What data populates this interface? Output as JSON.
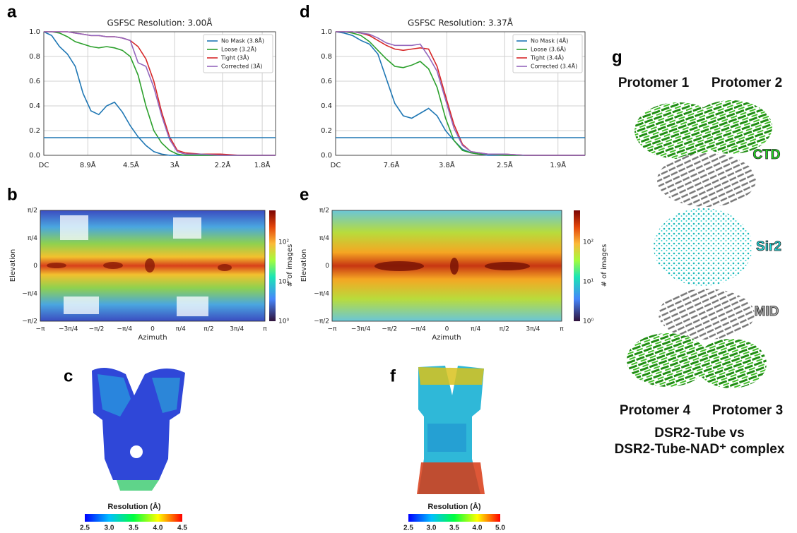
{
  "panel_labels": [
    "a",
    "b",
    "c",
    "d",
    "e",
    "f",
    "g"
  ],
  "chart_data": [
    {
      "type": "line",
      "title": "GSFSC Resolution: 3.00Å",
      "x": [
        0,
        0.02,
        0.04,
        0.06,
        0.08,
        0.1,
        0.12,
        0.14,
        0.16,
        0.18,
        0.2,
        0.22,
        0.24,
        0.26,
        0.28,
        0.3,
        0.32,
        0.34,
        0.36,
        0.4,
        0.45,
        0.5,
        0.55,
        0.59
      ],
      "series": [
        {
          "name": "No Mask (3.8Å)",
          "color": "#1f77b4",
          "values": [
            1,
            0.97,
            0.88,
            0.82,
            0.72,
            0.5,
            0.36,
            0.33,
            0.4,
            0.43,
            0.35,
            0.24,
            0.15,
            0.08,
            0.03,
            0.01,
            0,
            0,
            0,
            0,
            0,
            0,
            0,
            0
          ]
        },
        {
          "name": "Loose (3.2Å)",
          "color": "#2ca02c",
          "values": [
            1,
            1,
            0.99,
            0.96,
            0.92,
            0.9,
            0.88,
            0.87,
            0.88,
            0.87,
            0.85,
            0.8,
            0.65,
            0.4,
            0.2,
            0.1,
            0.04,
            0.01,
            0,
            0,
            0,
            0,
            0,
            0
          ]
        },
        {
          "name": "Tight (3Å)",
          "color": "#d62728",
          "values": [
            1,
            1,
            1,
            1,
            0.99,
            0.98,
            0.97,
            0.97,
            0.96,
            0.96,
            0.95,
            0.93,
            0.88,
            0.78,
            0.6,
            0.35,
            0.15,
            0.04,
            0.02,
            0.01,
            0.01,
            0,
            0,
            0
          ]
        },
        {
          "name": "Corrected (3Å)",
          "color": "#9467bd",
          "values": [
            1,
            1,
            1,
            1,
            0.99,
            0.98,
            0.97,
            0.97,
            0.96,
            0.96,
            0.95,
            0.93,
            0.75,
            0.72,
            0.55,
            0.32,
            0.13,
            0.03,
            0.01,
            0.01,
            0,
            0,
            0,
            0
          ]
        }
      ],
      "threshold": 0.143,
      "xlim": [
        0,
        0.59
      ],
      "ylim": [
        0,
        1
      ],
      "xticks": [
        {
          "value": 0,
          "label": "DC"
        },
        {
          "value": 0.112,
          "label": "8.9Å"
        },
        {
          "value": 0.222,
          "label": "4.5Å"
        },
        {
          "value": 0.333,
          "label": "3Å"
        },
        {
          "value": 0.455,
          "label": "2.2Å"
        },
        {
          "value": 0.556,
          "label": "1.8Å"
        }
      ],
      "yticks": [
        {
          "value": 0,
          "label": "0.0"
        },
        0.2,
        0.4,
        0.6,
        0.8,
        {
          "value": 1,
          "label": "1.0"
        }
      ],
      "grid": true,
      "legend": "upper right"
    },
    {
      "type": "line",
      "title": "GSFSC Resolution: 3.37Å",
      "x": [
        0,
        0.02,
        0.04,
        0.06,
        0.08,
        0.1,
        0.12,
        0.14,
        0.16,
        0.18,
        0.2,
        0.22,
        0.24,
        0.26,
        0.28,
        0.3,
        0.32,
        0.34,
        0.36,
        0.4,
        0.45,
        0.5,
        0.55,
        0.59
      ],
      "series": [
        {
          "name": "No Mask (4Å)",
          "color": "#1f77b4",
          "values": [
            1,
            0.99,
            0.97,
            0.93,
            0.9,
            0.82,
            0.62,
            0.42,
            0.32,
            0.3,
            0.34,
            0.38,
            0.32,
            0.2,
            0.12,
            0.05,
            0.02,
            0.01,
            0,
            0,
            0,
            0,
            0,
            0
          ]
        },
        {
          "name": "Loose (3.6Å)",
          "color": "#2ca02c",
          "values": [
            1,
            1,
            0.99,
            0.97,
            0.92,
            0.85,
            0.78,
            0.72,
            0.71,
            0.73,
            0.76,
            0.7,
            0.55,
            0.3,
            0.12,
            0.04,
            0.02,
            0.01,
            0.01,
            0,
            0,
            0,
            0,
            0
          ]
        },
        {
          "name": "Tight (3.4Å)",
          "color": "#d62728",
          "values": [
            1,
            1,
            1,
            0.99,
            0.97,
            0.93,
            0.89,
            0.86,
            0.85,
            0.86,
            0.87,
            0.86,
            0.72,
            0.48,
            0.25,
            0.09,
            0.03,
            0.02,
            0.01,
            0.01,
            0,
            0,
            0,
            0
          ]
        },
        {
          "name": "Corrected (3.4Å)",
          "color": "#9467bd",
          "values": [
            1,
            1,
            1,
            0.99,
            0.98,
            0.95,
            0.91,
            0.89,
            0.89,
            0.89,
            0.9,
            0.8,
            0.68,
            0.45,
            0.22,
            0.08,
            0.03,
            0.02,
            0.01,
            0.01,
            0,
            0,
            0,
            0
          ]
        }
      ],
      "threshold": 0.143,
      "xlim": [
        0,
        0.59
      ],
      "ylim": [
        0,
        1
      ],
      "xticks": [
        {
          "value": 0,
          "label": "DC"
        },
        {
          "value": 0.132,
          "label": "7.6Å"
        },
        {
          "value": 0.263,
          "label": "3.8Å"
        },
        {
          "value": 0.4,
          "label": "2.5Å"
        },
        {
          "value": 0.526,
          "label": "1.9Å"
        }
      ],
      "yticks": [
        {
          "value": 0,
          "label": "0.0"
        },
        0.2,
        0.4,
        0.6,
        0.8,
        {
          "value": 1,
          "label": "1.0"
        }
      ],
      "grid": true,
      "legend": "upper right"
    }
  ],
  "viewing_distribution": [
    {
      "y_label": "Elevation",
      "x_label": "Azimuth",
      "colorbar_label": "# of images",
      "yticks": [
        "−π/2",
        "−π/4",
        "0",
        "π/4",
        "π/2"
      ],
      "xticks": [
        "−π",
        "−3π/4",
        "−π/2",
        "−π/4",
        "0",
        "π/4",
        "π/2",
        "3π/4",
        "π"
      ],
      "colorbar_ticks": [
        "10⁰",
        "10¹",
        "10²"
      ]
    },
    {
      "y_label": "Elevation",
      "x_label": "Azimuth",
      "colorbar_label": "# of images",
      "yticks": [
        "−π/2",
        "−π/4",
        "0",
        "π/4",
        "π/2"
      ],
      "xticks": [
        "−π",
        "−3π/4",
        "−π/2",
        "−π/4",
        "0",
        "π/4",
        "π/2",
        "3π/4",
        "π"
      ],
      "colorbar_ticks": [
        "10⁰",
        "10¹",
        "10²"
      ]
    }
  ],
  "local_resolution": [
    {
      "colorbar_label": "Resolution (Å)",
      "colorbar_ticks": [
        "2.5",
        "3.0",
        "3.5",
        "4.0",
        "4.5"
      ]
    },
    {
      "colorbar_label": "Resolution (Å)",
      "colorbar_ticks": [
        "2.5",
        "3.0",
        "3.5",
        "4.0",
        "5.0"
      ]
    }
  ],
  "model": {
    "protomers": [
      "Protomer 1",
      "Protomer 2",
      "Protomer 4",
      "Protomer 3"
    ],
    "domains": [
      "CTD",
      "Sir2",
      "MID"
    ],
    "caption": [
      "DSR2-Tube vs",
      "DSR2-Tube-NAD⁺ complex"
    ]
  }
}
